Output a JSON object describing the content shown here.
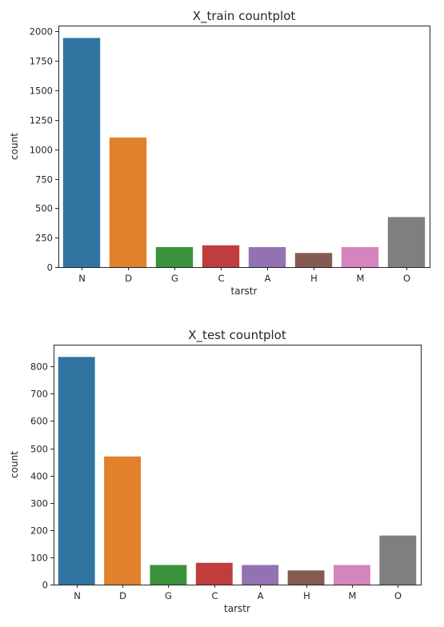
{
  "chart_data": [
    {
      "type": "bar",
      "title": "X_train countplot",
      "xlabel": "tarstr",
      "ylabel": "count",
      "categories": [
        "N",
        "D",
        "G",
        "C",
        "A",
        "H",
        "M",
        "O"
      ],
      "values": [
        1945,
        1100,
        170,
        185,
        170,
        120,
        170,
        425
      ],
      "ylim": [
        0,
        2050
      ],
      "yticks": [
        0,
        250,
        500,
        750,
        1000,
        1250,
        1500,
        1750,
        2000
      ],
      "grid": false,
      "colors": [
        "#3274a1",
        "#e1812c",
        "#3a923a",
        "#c03d3e",
        "#9372b2",
        "#845b53",
        "#d684bd",
        "#7f7f7f"
      ]
    },
    {
      "type": "bar",
      "title": "X_test countplot",
      "xlabel": "tarstr",
      "ylabel": "count",
      "categories": [
        "N",
        "D",
        "G",
        "C",
        "A",
        "H",
        "M",
        "O"
      ],
      "values": [
        835,
        470,
        72,
        80,
        72,
        52,
        72,
        180
      ],
      "ylim": [
        0,
        880
      ],
      "yticks": [
        0,
        100,
        200,
        300,
        400,
        500,
        600,
        700,
        800
      ],
      "grid": false,
      "colors": [
        "#3274a1",
        "#e1812c",
        "#3a923a",
        "#c03d3e",
        "#9372b2",
        "#845b53",
        "#d684bd",
        "#7f7f7f"
      ]
    }
  ]
}
